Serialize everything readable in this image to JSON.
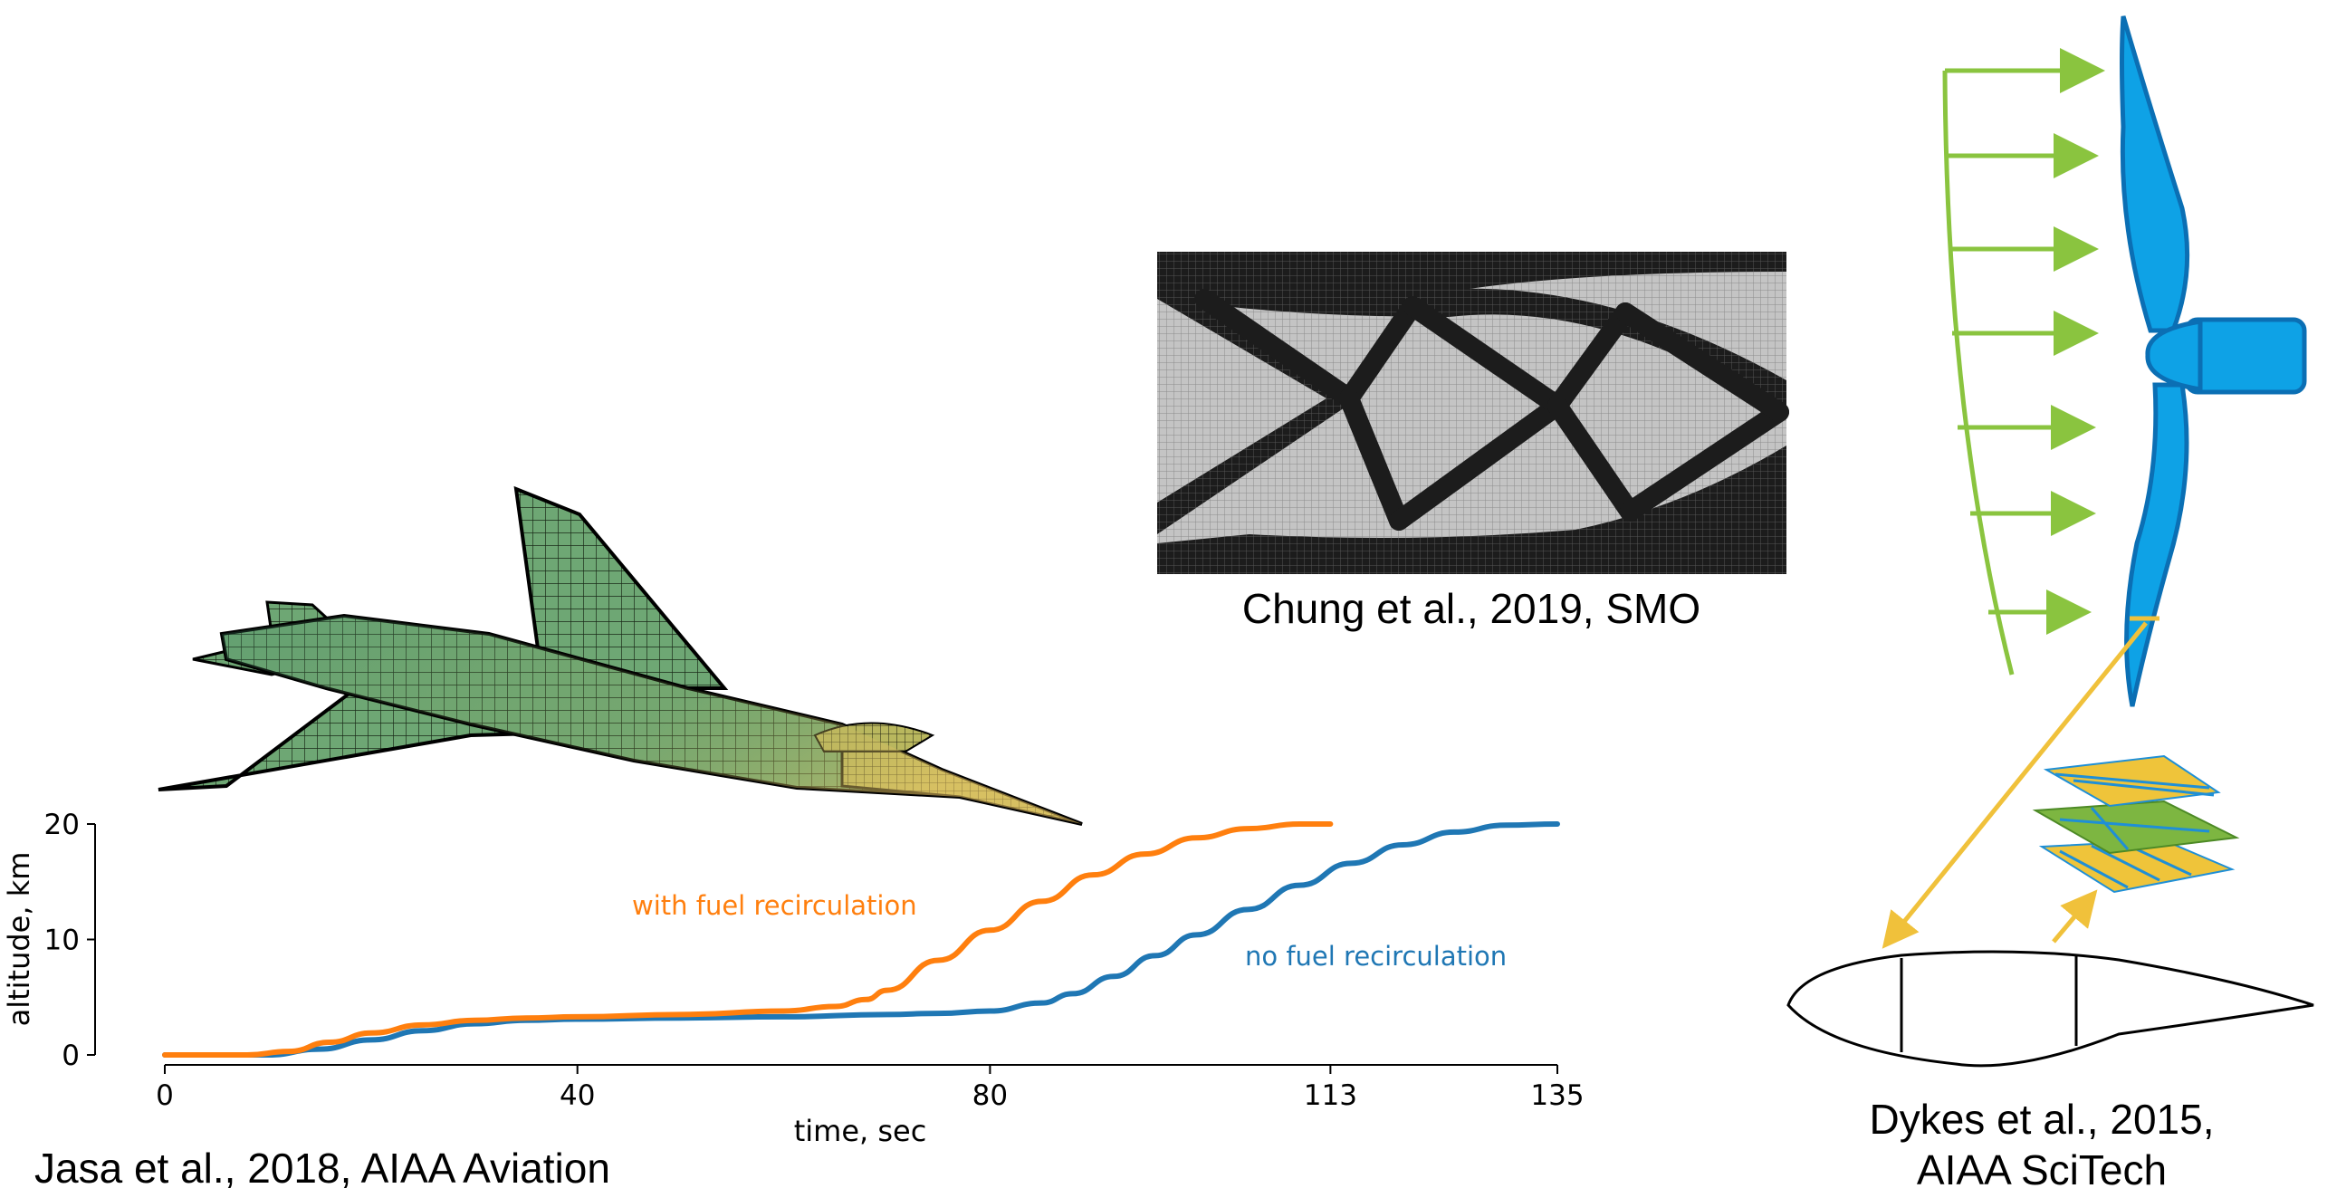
{
  "captions": {
    "jasa": "Jasa et al., 2018, AIAA Aviation",
    "chung": "Chung et al., 2019, SMO",
    "dykes_line1": "Dykes et al., 2015,",
    "dykes_line2": "AIAA SciTech"
  },
  "chart_data": {
    "type": "line",
    "xlabel": "time, sec",
    "ylabel": "altitude, km",
    "x_ticks": [
      0,
      40,
      80,
      113,
      135
    ],
    "y_ticks": [
      0,
      10,
      20
    ],
    "xlim": [
      0,
      135
    ],
    "ylim": [
      0,
      20
    ],
    "grid": false,
    "series": [
      {
        "name": "with fuel recirculation",
        "color": "#ff7f0e",
        "x": [
          0,
          8,
          12,
          16,
          20,
          25,
          30,
          35,
          40,
          50,
          60,
          65,
          68,
          70,
          75,
          80,
          85,
          90,
          95,
          100,
          105,
          110,
          113
        ],
        "y": [
          0,
          0,
          0.3,
          1.1,
          1.9,
          2.6,
          3.0,
          3.2,
          3.3,
          3.5,
          3.8,
          4.2,
          4.8,
          5.6,
          8.2,
          10.8,
          13.3,
          15.6,
          17.4,
          18.8,
          19.6,
          20.0,
          20.0
        ]
      },
      {
        "name": "no fuel recirculation",
        "color": "#1f77b4",
        "x": [
          0,
          10,
          15,
          20,
          25,
          30,
          35,
          40,
          50,
          60,
          70,
          75,
          80,
          85,
          88,
          92,
          96,
          100,
          105,
          110,
          115,
          120,
          125,
          130,
          135
        ],
        "y": [
          0,
          0,
          0.5,
          1.3,
          2.1,
          2.7,
          3.0,
          3.1,
          3.2,
          3.3,
          3.5,
          3.6,
          3.8,
          4.5,
          5.3,
          6.8,
          8.6,
          10.4,
          12.6,
          14.7,
          16.6,
          18.2,
          19.3,
          19.9,
          20.0
        ]
      }
    ]
  },
  "colors": {
    "aircraft_mesh": "#6ea774",
    "aircraft_highlight": "#e7c46a",
    "topology_solid": "#222222",
    "topology_void": "#c4c4c4",
    "blade_fill": "#0ea2e6",
    "blade_stroke": "#0b6fb4",
    "wind_arrows": "#8ac43f",
    "link_arrows": "#f0c13b",
    "ply_yellow": "#efc43a",
    "ply_green": "#7db641",
    "ply_blue": "#1f8fd6"
  }
}
